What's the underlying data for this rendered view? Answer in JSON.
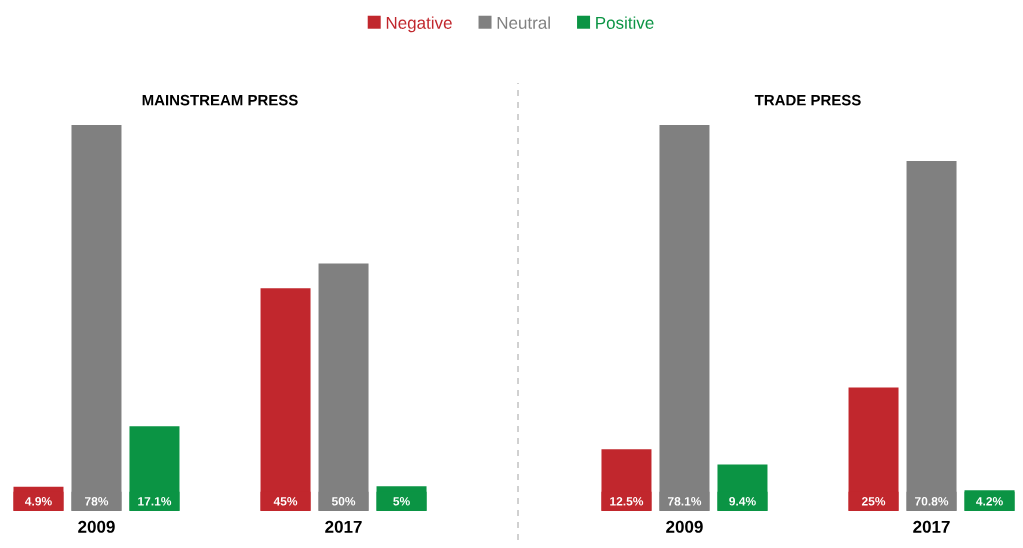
{
  "chart_data": [
    {
      "type": "bar",
      "title": "MAINSTREAM PRESS",
      "categories": [
        "2009",
        "2017"
      ],
      "tick_labels": "x",
      "legend": "top",
      "series": [
        {
          "name": "Negative",
          "color": "#c1272d",
          "values": [
            4.9,
            45
          ],
          "value_labels": [
            "4.9%",
            "45%"
          ]
        },
        {
          "name": "Neutral",
          "color": "#808080",
          "values": [
            78,
            50
          ],
          "value_labels": [
            "78%",
            "50%"
          ]
        },
        {
          "name": "Positive",
          "color": "#0b9444",
          "values": [
            17.1,
            5
          ],
          "value_labels": [
            "17.1%",
            "5%"
          ]
        }
      ]
    },
    {
      "type": "bar",
      "title": "TRADE PRESS",
      "categories": [
        "2009",
        "2017"
      ],
      "tick_labels": "x",
      "series": [
        {
          "color": "#c1272d",
          "values": [
            12.5,
            25
          ],
          "value_labels": [
            "12.5%",
            "25%"
          ]
        },
        {
          "color": "#808080",
          "values": [
            78.1,
            70.8
          ],
          "value_labels": [
            "78.1%",
            "70.8%"
          ]
        },
        {
          "color": "#0b9444",
          "values": [
            9.4,
            4.2
          ],
          "value_labels": [
            "9.4%",
            "4.2%"
          ]
        }
      ]
    }
  ]
}
